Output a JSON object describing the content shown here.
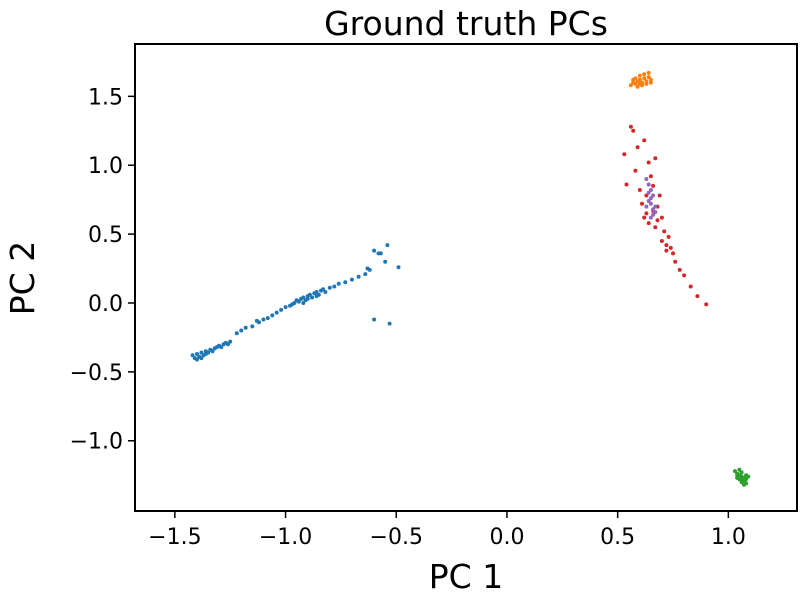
{
  "chart_data": {
    "type": "scatter",
    "title": "Ground truth PCs",
    "xlabel": "PC 1",
    "ylabel": "PC 2",
    "xlim": [
      -1.68,
      1.31
    ],
    "ylim": [
      -1.51,
      1.88
    ],
    "x_ticks": [
      -1.5,
      -1.0,
      -0.5,
      0.0,
      0.5,
      1.0
    ],
    "x_tick_labels": [
      "−1.5",
      "−1.0",
      "−0.5",
      "0.0",
      "0.5",
      "1.0"
    ],
    "y_ticks": [
      -1.0,
      -0.5,
      0.0,
      0.5,
      1.0,
      1.5
    ],
    "y_tick_labels": [
      "−1.0",
      "−0.5",
      "0.0",
      "0.5",
      "1.0",
      "1.5"
    ],
    "grid": false,
    "legend": "none",
    "series": [
      {
        "color": "#1f77b4",
        "points": [
          [
            -1.42,
            -0.38
          ],
          [
            -1.41,
            -0.4
          ],
          [
            -1.4,
            -0.37
          ],
          [
            -1.39,
            -0.39
          ],
          [
            -1.38,
            -0.36
          ],
          [
            -1.37,
            -0.38
          ],
          [
            -1.36,
            -0.35
          ],
          [
            -1.4,
            -0.41
          ],
          [
            -1.38,
            -0.4
          ],
          [
            -1.36,
            -0.37
          ],
          [
            -1.35,
            -0.36
          ],
          [
            -1.34,
            -0.34
          ],
          [
            -1.33,
            -0.35
          ],
          [
            -1.32,
            -0.33
          ],
          [
            -1.31,
            -0.32
          ],
          [
            -1.3,
            -0.31
          ],
          [
            -1.29,
            -0.32
          ],
          [
            -1.28,
            -0.3
          ],
          [
            -1.27,
            -0.29
          ],
          [
            -1.26,
            -0.3
          ],
          [
            -1.25,
            -0.28
          ],
          [
            -1.22,
            -0.22
          ],
          [
            -1.18,
            -0.18
          ],
          [
            -1.15,
            -0.17
          ],
          [
            -1.12,
            -0.14
          ],
          [
            -1.1,
            -0.12
          ],
          [
            -1.08,
            -0.11
          ],
          [
            -1.06,
            -0.09
          ],
          [
            -1.04,
            -0.07
          ],
          [
            -1.02,
            -0.05
          ],
          [
            -1.0,
            -0.03
          ],
          [
            -0.98,
            -0.02
          ],
          [
            -0.96,
            0.0
          ],
          [
            -0.95,
            0.02
          ],
          [
            -0.94,
            0.01
          ],
          [
            -0.93,
            0.03
          ],
          [
            -0.92,
            0.04
          ],
          [
            -0.91,
            0.02
          ],
          [
            -0.9,
            0.05
          ],
          [
            -0.89,
            0.06
          ],
          [
            -0.88,
            0.04
          ],
          [
            -0.87,
            0.07
          ],
          [
            -0.86,
            0.08
          ],
          [
            -0.85,
            0.06
          ],
          [
            -0.84,
            0.09
          ],
          [
            -0.83,
            0.1
          ],
          [
            -0.82,
            0.08
          ],
          [
            -0.8,
            0.11
          ],
          [
            -0.78,
            0.12
          ],
          [
            -0.76,
            0.14
          ],
          [
            -0.73,
            0.15
          ],
          [
            -0.7,
            0.17
          ],
          [
            -0.67,
            0.19
          ],
          [
            -0.64,
            0.21
          ],
          [
            -0.62,
            0.24
          ],
          [
            -0.6,
            0.38
          ],
          [
            -0.57,
            0.36
          ],
          [
            -0.54,
            0.42
          ],
          [
            -0.63,
            0.25
          ],
          [
            -0.55,
            0.3
          ],
          [
            -0.58,
            0.36
          ],
          [
            -0.49,
            0.26
          ],
          [
            -0.6,
            -0.12
          ],
          [
            -0.53,
            -0.15
          ],
          [
            -0.97,
            -0.01
          ],
          [
            -0.9,
            0.03
          ],
          [
            -0.86,
            0.05
          ],
          [
            -0.92,
            0.0
          ],
          [
            -1.13,
            -0.13
          ],
          [
            -1.2,
            -0.2
          ]
        ]
      },
      {
        "color": "#ff7f0e",
        "points": [
          [
            0.56,
            1.58
          ],
          [
            0.57,
            1.6
          ],
          [
            0.58,
            1.59
          ],
          [
            0.59,
            1.61
          ],
          [
            0.6,
            1.62
          ],
          [
            0.61,
            1.6
          ],
          [
            0.62,
            1.63
          ],
          [
            0.63,
            1.61
          ],
          [
            0.64,
            1.64
          ],
          [
            0.65,
            1.62
          ],
          [
            0.58,
            1.63
          ],
          [
            0.6,
            1.65
          ],
          [
            0.62,
            1.66
          ],
          [
            0.64,
            1.67
          ],
          [
            0.59,
            1.57
          ],
          [
            0.61,
            1.58
          ],
          [
            0.63,
            1.59
          ],
          [
            0.65,
            1.6
          ],
          [
            0.57,
            1.62
          ],
          [
            0.6,
            1.59
          ]
        ]
      },
      {
        "color": "#2ca02c",
        "points": [
          [
            1.03,
            -1.22
          ],
          [
            1.04,
            -1.24
          ],
          [
            1.05,
            -1.25
          ],
          [
            1.06,
            -1.26
          ],
          [
            1.07,
            -1.27
          ],
          [
            1.08,
            -1.28
          ],
          [
            1.05,
            -1.28
          ],
          [
            1.06,
            -1.3
          ],
          [
            1.07,
            -1.29
          ],
          [
            1.08,
            -1.31
          ],
          [
            1.04,
            -1.27
          ],
          [
            1.09,
            -1.26
          ],
          [
            1.06,
            -1.23
          ],
          [
            1.07,
            -1.32
          ],
          [
            1.05,
            -1.21
          ],
          [
            1.08,
            -1.25
          ],
          [
            1.04,
            -1.25
          ],
          [
            1.06,
            -1.28
          ]
        ]
      },
      {
        "color": "#d62728",
        "points": [
          [
            0.53,
            1.08
          ],
          [
            0.54,
            0.86
          ],
          [
            0.56,
            1.28
          ],
          [
            0.57,
            1.25
          ],
          [
            0.59,
            1.13
          ],
          [
            0.58,
            0.96
          ],
          [
            0.6,
            0.82
          ],
          [
            0.61,
            0.72
          ],
          [
            0.62,
            1.18
          ],
          [
            0.62,
            0.62
          ],
          [
            0.63,
            0.78
          ],
          [
            0.64,
            0.58
          ],
          [
            0.64,
            1.02
          ],
          [
            0.65,
            0.92
          ],
          [
            0.66,
            0.67
          ],
          [
            0.67,
            1.05
          ],
          [
            0.67,
            0.55
          ],
          [
            0.68,
            0.7
          ],
          [
            0.69,
            0.78
          ],
          [
            0.7,
            0.45
          ],
          [
            0.7,
            0.62
          ],
          [
            0.71,
            0.52
          ],
          [
            0.72,
            0.38
          ],
          [
            0.73,
            0.48
          ],
          [
            0.74,
            0.4
          ],
          [
            0.75,
            0.36
          ],
          [
            0.76,
            0.3
          ],
          [
            0.78,
            0.24
          ],
          [
            0.8,
            0.2
          ],
          [
            0.83,
            0.12
          ],
          [
            0.86,
            0.05
          ],
          [
            0.9,
            -0.01
          ],
          [
            0.63,
            0.65
          ],
          [
            0.66,
            0.85
          ],
          [
            0.68,
            0.6
          ],
          [
            0.72,
            0.42
          ]
        ]
      },
      {
        "color": "#9467bd",
        "points": [
          [
            0.63,
            0.9
          ],
          [
            0.64,
            0.86
          ],
          [
            0.64,
            0.8
          ],
          [
            0.65,
            0.76
          ],
          [
            0.65,
            0.72
          ],
          [
            0.66,
            0.68
          ],
          [
            0.66,
            0.64
          ],
          [
            0.67,
            0.7
          ],
          [
            0.65,
            0.82
          ],
          [
            0.64,
            0.74
          ],
          [
            0.66,
            0.78
          ],
          [
            0.67,
            0.66
          ],
          [
            0.63,
            0.7
          ],
          [
            0.65,
            0.62
          ]
        ]
      }
    ]
  }
}
